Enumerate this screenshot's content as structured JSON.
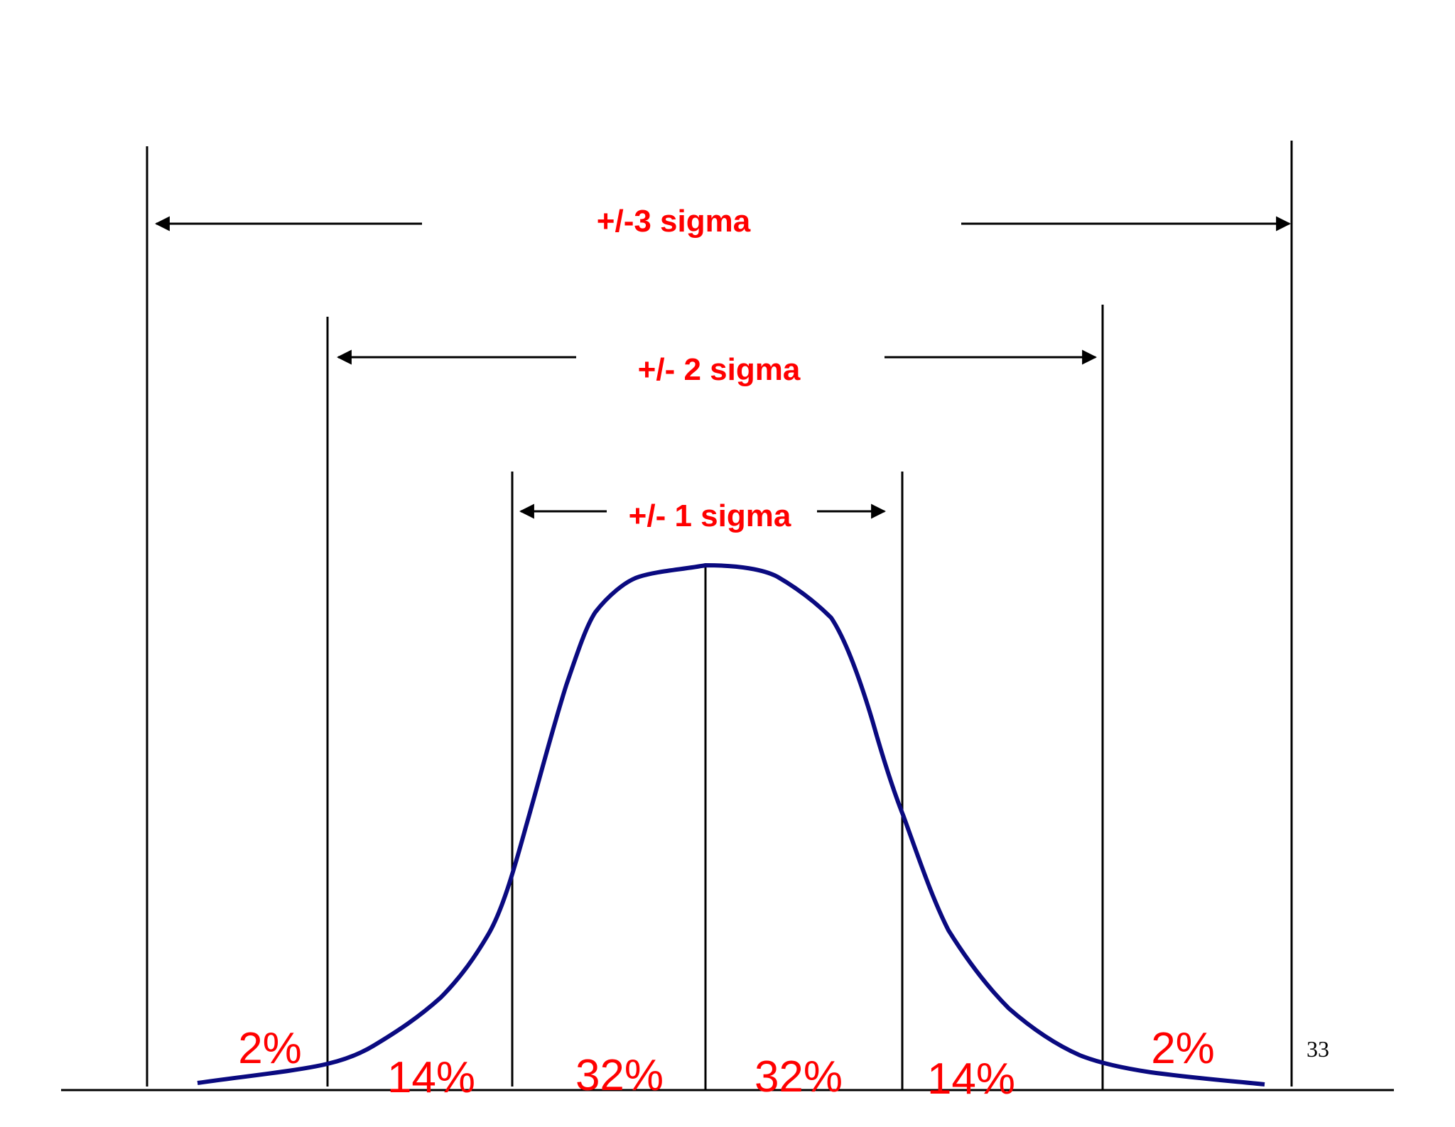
{
  "diagram": {
    "colors": {
      "curve": "#0a0a80",
      "label": "#ff0000",
      "line": "#000000",
      "page_number": "#000000"
    },
    "sigma_labels": {
      "three": "+/-3 sigma",
      "two": "+/- 2 sigma",
      "one": "+/- 1 sigma"
    },
    "percentages": {
      "tail_left": "2%",
      "band_left_2": "14%",
      "band_left_1": "32%",
      "band_right_1": "32%",
      "band_right_2": "14%",
      "tail_right": "2%"
    },
    "page_number": "33"
  }
}
